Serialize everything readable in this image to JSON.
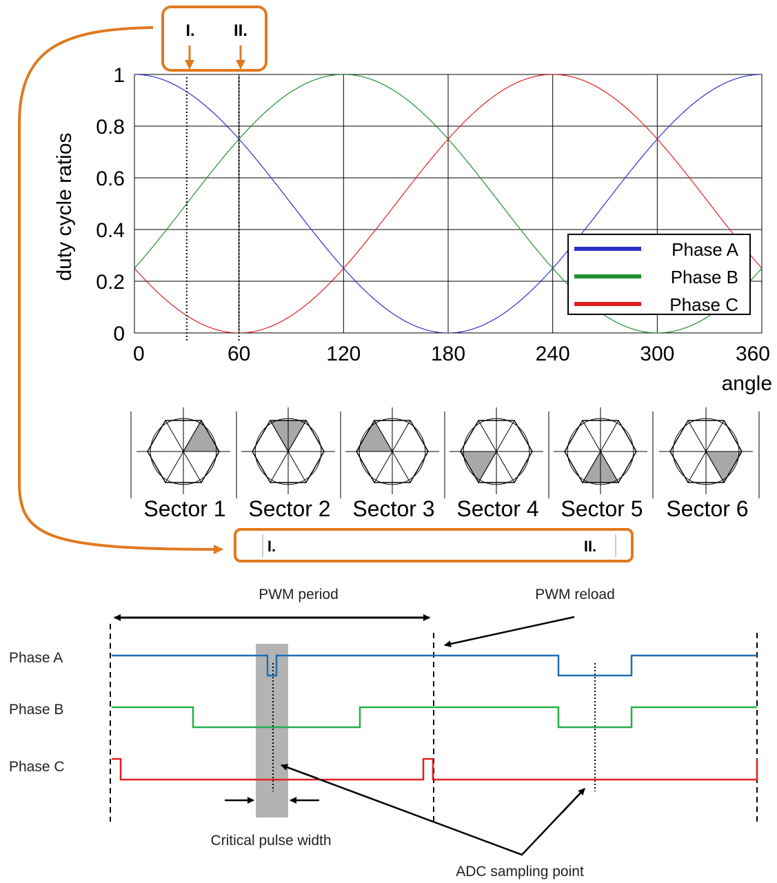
{
  "colors": {
    "phase_a": "#2f2fc8",
    "phase_b": "#1f8f2f",
    "phase_c": "#e02020",
    "accent_orange": "#e07a1f",
    "pwm_phase_a": "#1f6fb5",
    "pwm_phase_b": "#22b04a",
    "pwm_phase_c": "#e41e1e",
    "critical_band": "#b3b3b3"
  },
  "chart_data": {
    "type": "line",
    "title": "",
    "xlabel": "angle",
    "ylabel": "duty cycle ratios",
    "xlim": [
      0,
      360
    ],
    "ylim": [
      0,
      1
    ],
    "xticks": [
      0,
      60,
      120,
      180,
      240,
      300,
      360
    ],
    "xtick_labels": [
      "0",
      "60",
      "120",
      "180",
      "240",
      "300",
      "360"
    ],
    "yticks": [
      0,
      0.2,
      0.4,
      0.6,
      0.8,
      1
    ],
    "ytick_labels": [
      "0",
      "0.2",
      "0.4",
      "0.6",
      "0.8",
      "1"
    ],
    "grid": true,
    "legend_position": "bottom-right",
    "markers": [
      {
        "label": "I.",
        "x": 30
      },
      {
        "label": "II.",
        "x": 60
      }
    ],
    "series": [
      {
        "name": "Phase A",
        "function": "0.5 + 0.5*cos(angle)",
        "x": [
          0,
          60,
          120,
          180,
          240,
          300,
          360
        ],
        "values": [
          1,
          0.75,
          0.25,
          0,
          0.25,
          0.75,
          1
        ]
      },
      {
        "name": "Phase B",
        "function": "0.5 + 0.5*cos(angle - 120)",
        "x": [
          0,
          60,
          120,
          180,
          240,
          300,
          360
        ],
        "values": [
          0.25,
          0.75,
          1,
          0.75,
          0.25,
          0,
          0.25
        ]
      },
      {
        "name": "Phase C",
        "function": "0.5 + 0.5*cos(angle + 120)",
        "x": [
          0,
          60,
          120,
          180,
          240,
          300,
          360
        ],
        "values": [
          0.25,
          0,
          0.25,
          0.75,
          1,
          0.75,
          0.25
        ]
      }
    ]
  },
  "sectors": {
    "labels": [
      "Sector 1",
      "Sector 2",
      "Sector 3",
      "Sector 4",
      "Sector 5",
      "Sector 6"
    ]
  },
  "zoom_bar": {
    "left_label": "I.",
    "right_label": "II."
  },
  "timing": {
    "pwm_period_label": "PWM period",
    "pwm_reload_label": "PWM reload",
    "phase_labels": [
      "Phase A",
      "Phase B",
      "Phase C"
    ],
    "critical_pulse_label": "Critical pulse width",
    "adc_label": "ADC sampling point"
  }
}
